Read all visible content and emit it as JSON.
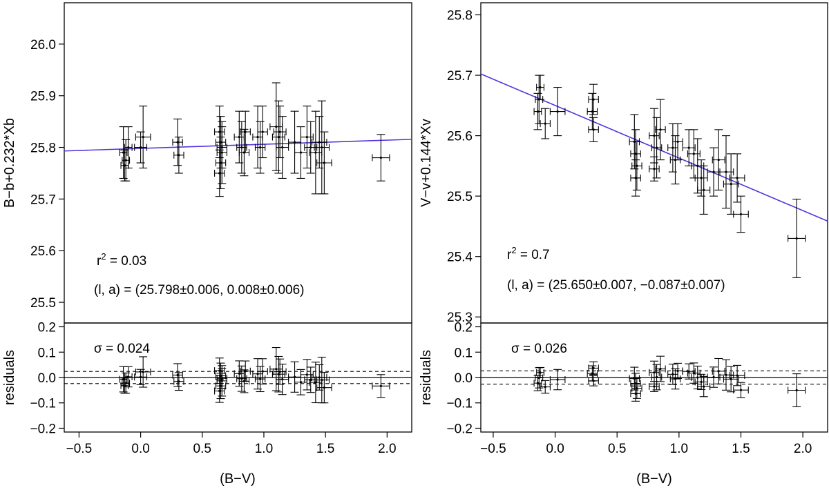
{
  "chart_data": [
    {
      "type": "scatter",
      "id": "left",
      "xlabel": "(B−V)",
      "ylabel": "B−b+0.232*Xb",
      "residual_ylabel": "residuals",
      "xlim": [
        -0.62,
        2.2
      ],
      "ylim": [
        25.46,
        26.08
      ],
      "residual_ylim": [
        -0.215,
        0.215
      ],
      "xticks": [
        "−0.5",
        "0.0",
        "0.5",
        "1.0",
        "1.5",
        "2.0"
      ],
      "xtick_values": [
        -0.5,
        0.0,
        0.5,
        1.0,
        1.5,
        2.0
      ],
      "yticks": [
        "25.5",
        "25.6",
        "25.7",
        "25.8",
        "25.9",
        "26.0"
      ],
      "ytick_values": [
        25.5,
        25.6,
        25.7,
        25.8,
        25.9,
        26.0
      ],
      "residual_yticks": [
        "−0.2",
        "−0.1",
        "0.0",
        "0.1",
        "0.2"
      ],
      "residual_ytick_values": [
        -0.2,
        -0.1,
        0.0,
        0.1,
        0.2
      ],
      "fit": {
        "intercept": 25.798,
        "slope": 0.008
      },
      "sigma": 0.024,
      "annotations": {
        "r2_prefix": "r",
        "r2_sup": "2",
        "r2_value": " = 0.03",
        "params": "(l, a) = (25.798±0.006, 0.008±0.006)",
        "sigma_text": "σ = 0.024"
      },
      "points": [
        {
          "x": -0.14,
          "y": 25.79,
          "xerr": 0.03,
          "yerr": 0.05
        },
        {
          "x": -0.12,
          "y": 25.775,
          "xerr": 0.03,
          "yerr": 0.04
        },
        {
          "x": -0.1,
          "y": 25.8,
          "xerr": 0.03,
          "yerr": 0.04
        },
        {
          "x": -0.13,
          "y": 25.765,
          "xerr": 0.03,
          "yerr": 0.03
        },
        {
          "x": 0.02,
          "y": 25.82,
          "xerr": 0.06,
          "yerr": 0.06
        },
        {
          "x": 0.0,
          "y": 25.8,
          "xerr": 0.05,
          "yerr": 0.03
        },
        {
          "x": 0.3,
          "y": 25.81,
          "xerr": 0.04,
          "yerr": 0.045
        },
        {
          "x": 0.31,
          "y": 25.785,
          "xerr": 0.04,
          "yerr": 0.035
        },
        {
          "x": 0.64,
          "y": 25.83,
          "xerr": 0.04,
          "yerr": 0.05
        },
        {
          "x": 0.65,
          "y": 25.81,
          "xerr": 0.04,
          "yerr": 0.05
        },
        {
          "x": 0.66,
          "y": 25.79,
          "xerr": 0.04,
          "yerr": 0.06
        },
        {
          "x": 0.65,
          "y": 25.77,
          "xerr": 0.04,
          "yerr": 0.05
        },
        {
          "x": 0.64,
          "y": 25.75,
          "xerr": 0.04,
          "yerr": 0.045
        },
        {
          "x": 0.66,
          "y": 25.8,
          "xerr": 0.04,
          "yerr": 0.04
        },
        {
          "x": 0.8,
          "y": 25.82,
          "xerr": 0.04,
          "yerr": 0.05
        },
        {
          "x": 0.82,
          "y": 25.8,
          "xerr": 0.04,
          "yerr": 0.05
        },
        {
          "x": 0.85,
          "y": 25.83,
          "xerr": 0.04,
          "yerr": 0.04
        },
        {
          "x": 0.84,
          "y": 25.79,
          "xerr": 0.04,
          "yerr": 0.045
        },
        {
          "x": 0.95,
          "y": 25.82,
          "xerr": 0.04,
          "yerr": 0.06
        },
        {
          "x": 0.97,
          "y": 25.8,
          "xerr": 0.04,
          "yerr": 0.05
        },
        {
          "x": 0.99,
          "y": 25.83,
          "xerr": 0.04,
          "yerr": 0.05
        },
        {
          "x": 1.1,
          "y": 25.84,
          "xerr": 0.05,
          "yerr": 0.085
        },
        {
          "x": 1.12,
          "y": 25.82,
          "xerr": 0.05,
          "yerr": 0.07
        },
        {
          "x": 1.15,
          "y": 25.8,
          "xerr": 0.05,
          "yerr": 0.06
        },
        {
          "x": 1.13,
          "y": 25.83,
          "xerr": 0.05,
          "yerr": 0.05
        },
        {
          "x": 1.25,
          "y": 25.81,
          "xerr": 0.05,
          "yerr": 0.06
        },
        {
          "x": 1.3,
          "y": 25.79,
          "xerr": 0.05,
          "yerr": 0.05
        },
        {
          "x": 1.35,
          "y": 25.82,
          "xerr": 0.05,
          "yerr": 0.06
        },
        {
          "x": 1.38,
          "y": 25.8,
          "xerr": 0.05,
          "yerr": 0.05
        },
        {
          "x": 1.42,
          "y": 25.79,
          "xerr": 0.05,
          "yerr": 0.08
        },
        {
          "x": 1.47,
          "y": 25.8,
          "xerr": 0.06,
          "yerr": 0.09
        },
        {
          "x": 1.49,
          "y": 25.77,
          "xerr": 0.06,
          "yerr": 0.06
        },
        {
          "x": 1.45,
          "y": 25.81,
          "xerr": 0.06,
          "yerr": 0.05
        },
        {
          "x": 1.95,
          "y": 25.78,
          "xerr": 0.07,
          "yerr": 0.045
        }
      ]
    },
    {
      "type": "scatter",
      "id": "right",
      "xlabel": "(B−V)",
      "ylabel": "V−v+0.144*Xv",
      "residual_ylabel": "residuals",
      "xlim": [
        -0.6,
        2.2
      ],
      "ylim": [
        25.29,
        25.82
      ],
      "residual_ylim": [
        -0.215,
        0.215
      ],
      "xticks": [
        "−0.5",
        "0.0",
        "0.5",
        "1.0",
        "1.5",
        "2.0"
      ],
      "xtick_values": [
        -0.5,
        0.0,
        0.5,
        1.0,
        1.5,
        2.0
      ],
      "yticks": [
        "25.3",
        "25.4",
        "25.5",
        "25.6",
        "25.7",
        "25.8"
      ],
      "ytick_values": [
        25.3,
        25.4,
        25.5,
        25.6,
        25.7,
        25.8
      ],
      "residual_yticks": [
        "−0.2",
        "−0.1",
        "0.0",
        "0.1",
        "0.2"
      ],
      "residual_ytick_values": [
        -0.2,
        -0.1,
        0.0,
        0.1,
        0.2
      ],
      "fit": {
        "intercept": 25.65,
        "slope": -0.087
      },
      "sigma": 0.026,
      "annotations": {
        "r2_prefix": "r",
        "r2_sup": "2",
        "r2_value": " = 0.7",
        "params": "(l, a) = (25.650±0.007, −0.087±0.007)",
        "sigma_text": "σ = 0.026"
      },
      "points": [
        {
          "x": -0.12,
          "y": 25.68,
          "xerr": 0.03,
          "yerr": 0.02
        },
        {
          "x": -0.13,
          "y": 25.66,
          "xerr": 0.03,
          "yerr": 0.04
        },
        {
          "x": -0.14,
          "y": 25.64,
          "xerr": 0.03,
          "yerr": 0.03
        },
        {
          "x": -0.08,
          "y": 25.62,
          "xerr": 0.04,
          "yerr": 0.025
        },
        {
          "x": 0.02,
          "y": 25.64,
          "xerr": 0.06,
          "yerr": 0.04
        },
        {
          "x": 0.31,
          "y": 25.66,
          "xerr": 0.04,
          "yerr": 0.025
        },
        {
          "x": 0.3,
          "y": 25.64,
          "xerr": 0.04,
          "yerr": 0.03
        },
        {
          "x": 0.31,
          "y": 25.61,
          "xerr": 0.04,
          "yerr": 0.02
        },
        {
          "x": 0.64,
          "y": 25.59,
          "xerr": 0.04,
          "yerr": 0.045
        },
        {
          "x": 0.65,
          "y": 25.57,
          "xerr": 0.04,
          "yerr": 0.04
        },
        {
          "x": 0.66,
          "y": 25.55,
          "xerr": 0.04,
          "yerr": 0.04
        },
        {
          "x": 0.65,
          "y": 25.53,
          "xerr": 0.04,
          "yerr": 0.03
        },
        {
          "x": 0.8,
          "y": 25.6,
          "xerr": 0.04,
          "yerr": 0.045
        },
        {
          "x": 0.82,
          "y": 25.58,
          "xerr": 0.04,
          "yerr": 0.05
        },
        {
          "x": 0.85,
          "y": 25.61,
          "xerr": 0.04,
          "yerr": 0.05
        },
        {
          "x": 0.8,
          "y": 25.545,
          "xerr": 0.04,
          "yerr": 0.02
        },
        {
          "x": 0.95,
          "y": 25.58,
          "xerr": 0.04,
          "yerr": 0.04
        },
        {
          "x": 0.97,
          "y": 25.56,
          "xerr": 0.04,
          "yerr": 0.04
        },
        {
          "x": 0.99,
          "y": 25.59,
          "xerr": 0.04,
          "yerr": 0.03
        },
        {
          "x": 1.08,
          "y": 25.58,
          "xerr": 0.05,
          "yerr": 0.03
        },
        {
          "x": 1.12,
          "y": 25.57,
          "xerr": 0.05,
          "yerr": 0.04
        },
        {
          "x": 1.15,
          "y": 25.55,
          "xerr": 0.05,
          "yerr": 0.045
        },
        {
          "x": 1.18,
          "y": 25.53,
          "xerr": 0.05,
          "yerr": 0.03
        },
        {
          "x": 1.2,
          "y": 25.51,
          "xerr": 0.05,
          "yerr": 0.04
        },
        {
          "x": 1.28,
          "y": 25.54,
          "xerr": 0.05,
          "yerr": 0.04
        },
        {
          "x": 1.32,
          "y": 25.56,
          "xerr": 0.05,
          "yerr": 0.05
        },
        {
          "x": 1.38,
          "y": 25.54,
          "xerr": 0.06,
          "yerr": 0.06
        },
        {
          "x": 1.42,
          "y": 25.52,
          "xerr": 0.06,
          "yerr": 0.05
        },
        {
          "x": 1.47,
          "y": 25.53,
          "xerr": 0.06,
          "yerr": 0.04
        },
        {
          "x": 1.5,
          "y": 25.47,
          "xerr": 0.06,
          "yerr": 0.03
        },
        {
          "x": 1.95,
          "y": 25.43,
          "xerr": 0.07,
          "yerr": 0.065
        }
      ]
    }
  ]
}
